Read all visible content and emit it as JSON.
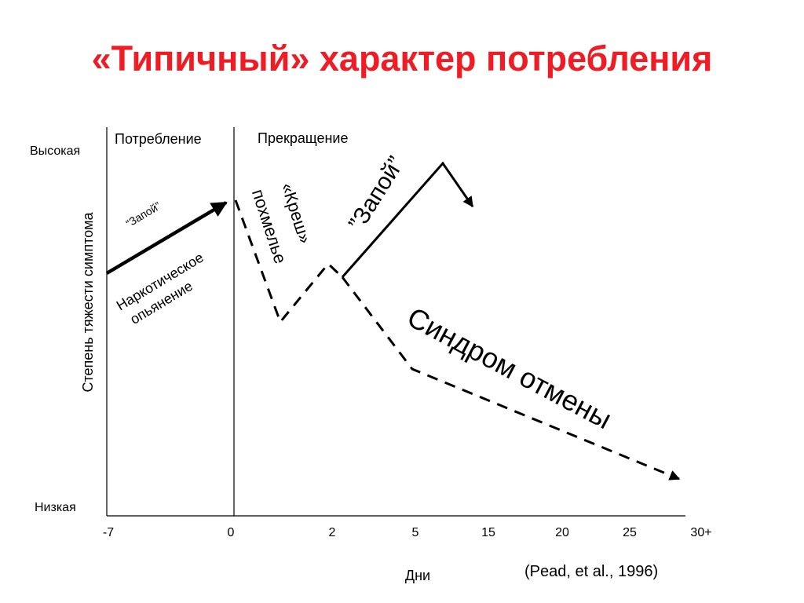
{
  "title": "«Типичный» характер потребления",
  "y_axis": {
    "label": "Степень тяжести симптома",
    "high": "Высокая",
    "low": "Низкая"
  },
  "x_axis": {
    "label": "Дни",
    "ticks": [
      "-7",
      "0",
      "2",
      "5",
      "15",
      "20",
      "25",
      "30+"
    ]
  },
  "phases": {
    "use": "Потребление",
    "cessation": "Прекращение"
  },
  "annotations": {
    "binge_small": "“Запой”",
    "intoxication_line1": "Наркотическое",
    "intoxication_line2": "опьянение",
    "crash_line1": "«Креш»",
    "crash_line2": "похмелье",
    "binge_large": "”Запой”",
    "withdrawal": "Синдром отмены"
  },
  "citation": "(Pead, et al., 1996)",
  "colors": {
    "title": "#ee1c24",
    "lines": "#000000"
  }
}
